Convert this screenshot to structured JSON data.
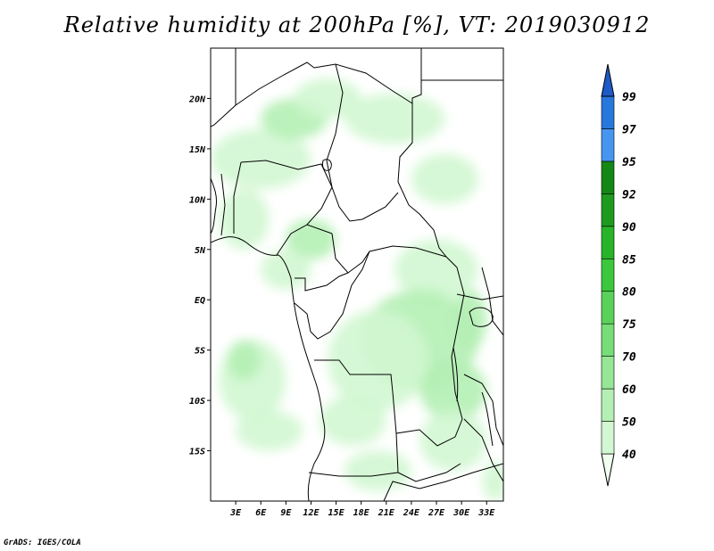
{
  "title": "Relative humidity at 200hPa [%], VT: 2019030912",
  "credit": "GrADS: IGES/COLA",
  "colors": {
    "background": "#ffffff",
    "land_line": "#000000",
    "map_fill": "#ffffff"
  },
  "chart_data": {
    "type": "heatmap",
    "variable": "Relative humidity",
    "level": "200hPa",
    "units": "%",
    "valid_time": "2019030912",
    "lon_range": [
      0,
      35
    ],
    "lat_range": [
      -20,
      25
    ],
    "x_ticks": [
      {
        "value": 3,
        "label": "3E"
      },
      {
        "value": 6,
        "label": "6E"
      },
      {
        "value": 9,
        "label": "9E"
      },
      {
        "value": 12,
        "label": "12E"
      },
      {
        "value": 15,
        "label": "15E"
      },
      {
        "value": 18,
        "label": "18E"
      },
      {
        "value": 21,
        "label": "21E"
      },
      {
        "value": 24,
        "label": "24E"
      },
      {
        "value": 27,
        "label": "27E"
      },
      {
        "value": 30,
        "label": "30E"
      },
      {
        "value": 33,
        "label": "33E"
      }
    ],
    "y_ticks": [
      {
        "value": 20,
        "label": "20N"
      },
      {
        "value": 15,
        "label": "15N"
      },
      {
        "value": 10,
        "label": "10N"
      },
      {
        "value": 5,
        "label": "5N"
      },
      {
        "value": 0,
        "label": "EQ"
      },
      {
        "value": -5,
        "label": "5S"
      },
      {
        "value": -10,
        "label": "10S"
      },
      {
        "value": -15,
        "label": "15S"
      }
    ],
    "colorbar": {
      "levels": [
        "40",
        "50",
        "60",
        "70",
        "75",
        "80",
        "85",
        "90",
        "92",
        "95",
        "97",
        "99"
      ],
      "colors": [
        "#f0fff0",
        "#d2f7d2",
        "#b4f0b4",
        "#96e696",
        "#78dc78",
        "#5ad25a",
        "#3cc83c",
        "#28b428",
        "#1e9b1e",
        "#148714",
        "#4696f0",
        "#2878dc",
        "#1e5ac8"
      ]
    },
    "humidity_regions": [
      {
        "level": 1,
        "lon": 6,
        "lat": 14,
        "rx": 6,
        "ry": 3
      },
      {
        "level": 2,
        "lon": 10,
        "lat": 18,
        "rx": 4,
        "ry": 2
      },
      {
        "level": 1,
        "lon": 14,
        "lat": 20,
        "rx": 4,
        "ry": 2
      },
      {
        "level": 1,
        "lon": 22,
        "lat": 18,
        "rx": 6,
        "ry": 2.5
      },
      {
        "level": 1,
        "lon": 28,
        "lat": 12,
        "rx": 4,
        "ry": 2.5
      },
      {
        "level": 1,
        "lon": 4,
        "lat": 8,
        "rx": 3,
        "ry": 3
      },
      {
        "level": 2,
        "lon": 12,
        "lat": 6,
        "rx": 3,
        "ry": 2
      },
      {
        "level": 1,
        "lon": 9,
        "lat": 3,
        "rx": 3,
        "ry": 2
      },
      {
        "level": 1,
        "lon": 27,
        "lat": 3,
        "rx": 5,
        "ry": 3
      },
      {
        "level": 2,
        "lon": 25,
        "lat": -4,
        "rx": 7,
        "ry": 5
      },
      {
        "level": 1,
        "lon": 20,
        "lat": -6,
        "rx": 6,
        "ry": 5
      },
      {
        "level": 2,
        "lon": 29,
        "lat": -9,
        "rx": 4,
        "ry": 3
      },
      {
        "level": 1,
        "lon": 29,
        "lat": -14,
        "rx": 4,
        "ry": 3
      },
      {
        "level": 1,
        "lon": 5,
        "lat": -8,
        "rx": 4,
        "ry": 4
      },
      {
        "level": 2,
        "lon": 4,
        "lat": -6,
        "rx": 2,
        "ry": 2
      },
      {
        "level": 1,
        "lon": 7,
        "lat": -13,
        "rx": 4,
        "ry": 2
      },
      {
        "level": 1,
        "lon": 17,
        "lat": -12,
        "rx": 4,
        "ry": 2.5
      },
      {
        "level": 1,
        "lon": 20,
        "lat": -17,
        "rx": 4,
        "ry": 2
      },
      {
        "level": 2,
        "lon": 31,
        "lat": -2,
        "rx": 2,
        "ry": 3
      },
      {
        "level": 1,
        "lon": 34,
        "lat": -18,
        "rx": 1.5,
        "ry": 2
      }
    ]
  }
}
